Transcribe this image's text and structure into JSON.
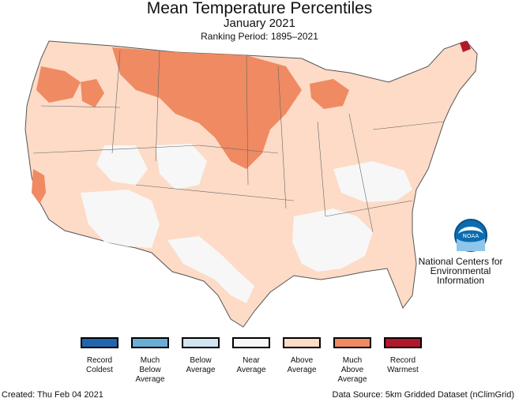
{
  "title": "Mean Temperature Percentiles",
  "subtitle": "January 2021",
  "ranking_period": "Ranking Period: 1895–2021",
  "organization": {
    "logo_text": "NOAA",
    "line1": "National Centers for",
    "line2": "Environmental",
    "line3": "Information"
  },
  "legend": [
    {
      "label_lines": [
        "Record",
        "Coldest"
      ],
      "color": "#2166ac"
    },
    {
      "label_lines": [
        "Much",
        "Below",
        "Average"
      ],
      "color": "#6aaed6"
    },
    {
      "label_lines": [
        "Below",
        "Average"
      ],
      "color": "#d1e5f0"
    },
    {
      "label_lines": [
        "Near",
        "Average"
      ],
      "color": "#f7f7f7"
    },
    {
      "label_lines": [
        "Above",
        "Average"
      ],
      "color": "#fddbc7"
    },
    {
      "label_lines": [
        "Much",
        "Above",
        "Average"
      ],
      "color": "#ef8a62"
    },
    {
      "label_lines": [
        "Record",
        "Warmest"
      ],
      "color": "#b2182b"
    }
  ],
  "footer": {
    "created": "Created: Thu Feb 04 2021",
    "source": "Data Source: 5km Gridded Dataset (nClimGrid)"
  }
}
